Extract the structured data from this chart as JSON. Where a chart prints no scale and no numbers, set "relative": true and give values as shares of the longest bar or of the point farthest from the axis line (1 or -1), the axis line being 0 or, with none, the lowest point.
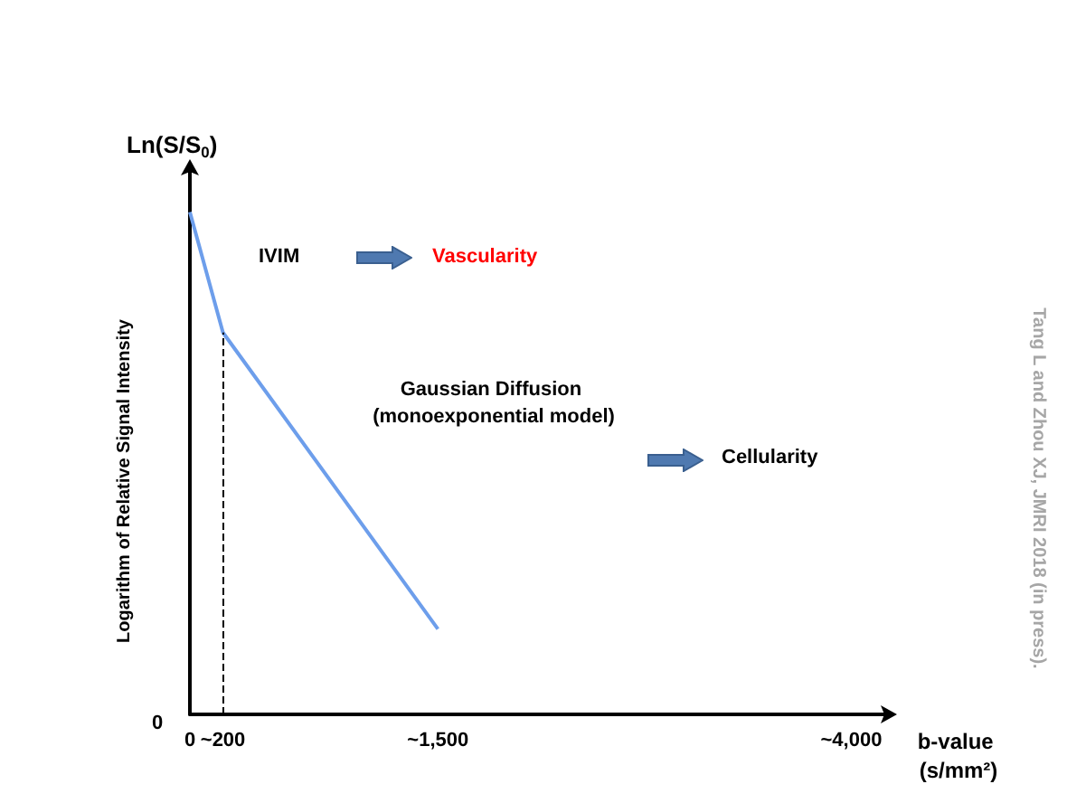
{
  "chart_data": {
    "type": "line",
    "relative": true,
    "ylabel": "Logarithm of Relative Signal Intensity",
    "xlabel": "b-value (s/mm²)",
    "x": [
      0,
      200,
      1500
    ],
    "series": [
      {
        "color": "#6d9eeb",
        "values": [
          1,
          0.76,
          0.17
        ]
      }
    ],
    "xlim": [
      0,
      4200
    ],
    "xticks": [
      0,
      {
        "value": 200,
        "label": "~200"
      },
      {
        "value": 1500,
        "label": "~1,500"
      },
      {
        "value": 4000,
        "label": "~4,000"
      }
    ],
    "ref_lines": [
      {
        "axis": "x",
        "value": 200,
        "line_style": "dashed",
        "color": "#000000"
      }
    ],
    "annotations": [
      "Ln(S/S$_{0}$)",
      "0",
      "IVIM",
      "Vascularity",
      "Gaussian Diffusion (monoexponential model)",
      "Cellularity",
      "Tang L and Zhou XJ, JMRI 2018 (in press)."
    ],
    "grid": false,
    "marker": "none",
    "line_style": "solid"
  }
}
